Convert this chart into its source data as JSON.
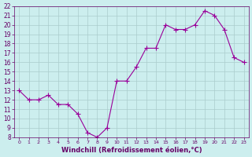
{
  "x": [
    0,
    1,
    2,
    3,
    4,
    5,
    6,
    7,
    8,
    9,
    10,
    11,
    12,
    13,
    14,
    15,
    16,
    17,
    18,
    19,
    20,
    21,
    22,
    23
  ],
  "y": [
    13,
    12,
    12,
    12.5,
    11.5,
    11.5,
    10.5,
    8.5,
    8,
    9,
    14,
    14,
    15.5,
    17.5,
    17.5,
    20,
    19.5,
    19.5,
    20,
    21.5,
    21,
    19.5,
    16.5,
    16
  ],
  "line_color": "#990099",
  "bg_color": "#cceeee",
  "grid_color": "#aacccc",
  "tick_color": "#660066",
  "label_color": "#660066",
  "xlabel": "Windchill (Refroidissement éolien,°C)",
  "ylim": [
    8,
    22
  ],
  "xlim": [
    -0.5,
    23.5
  ],
  "yticks": [
    8,
    9,
    10,
    11,
    12,
    13,
    14,
    15,
    16,
    17,
    18,
    19,
    20,
    21,
    22
  ],
  "xticks": [
    0,
    1,
    2,
    3,
    4,
    5,
    6,
    7,
    8,
    9,
    10,
    11,
    12,
    13,
    14,
    15,
    16,
    17,
    18,
    19,
    20,
    21,
    22,
    23
  ]
}
